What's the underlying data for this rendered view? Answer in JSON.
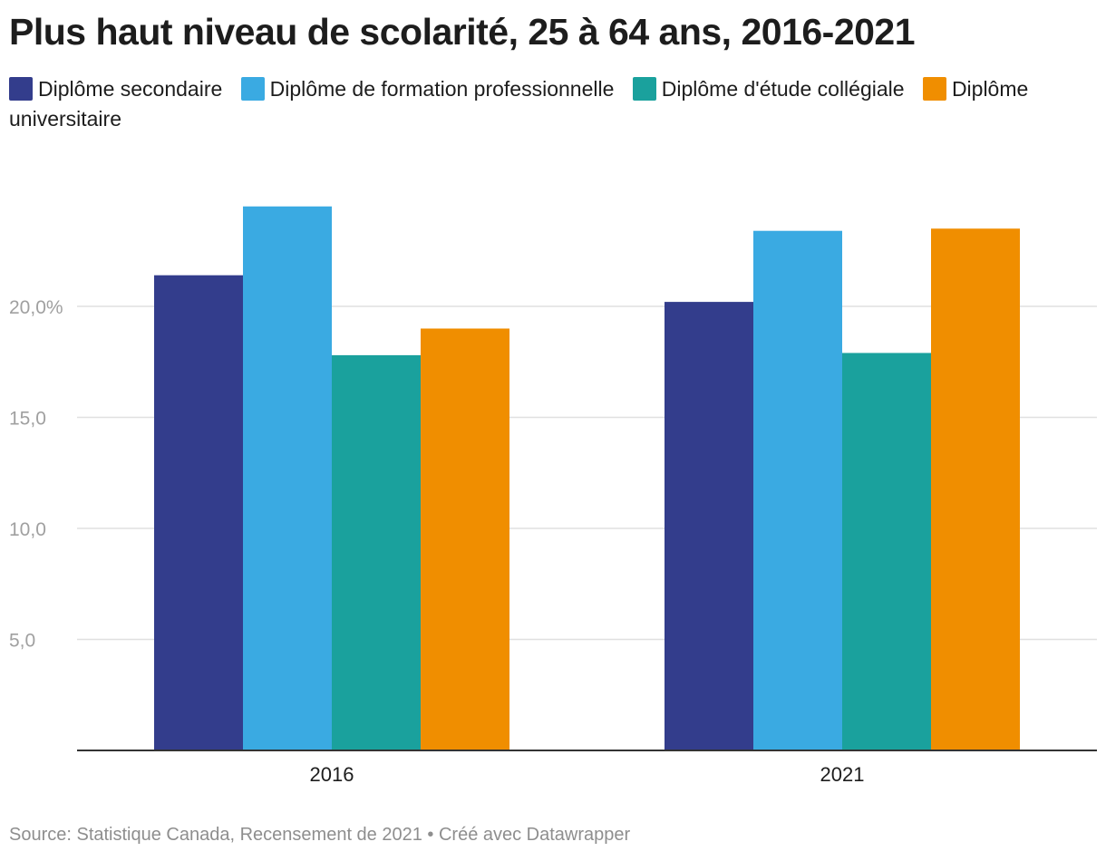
{
  "chart_data": {
    "type": "bar",
    "title": "Plus haut niveau de scolarité, 25 à 64 ans, 2016-2021",
    "categories": [
      "2016",
      "2021"
    ],
    "series": [
      {
        "name": "Diplôme secondaire",
        "color": "#333d8c",
        "values": [
          21.4,
          20.2
        ]
      },
      {
        "name": "Diplôme de formation professionnelle",
        "color": "#3aaae2",
        "values": [
          24.5,
          23.4
        ]
      },
      {
        "name": "Diplôme d'étude collégiale",
        "color": "#1aa19d",
        "values": [
          17.8,
          17.9
        ]
      },
      {
        "name": "Diplôme universitaire",
        "color": "#f08e00",
        "values": [
          19.0,
          23.5
        ]
      }
    ],
    "yticks": [
      5,
      10,
      15,
      20
    ],
    "ytick_labels": [
      "5,0",
      "10,0",
      "15,0",
      "20,0%"
    ],
    "ylim": [
      0,
      27
    ],
    "xlabel": "",
    "ylabel": "",
    "grid": true,
    "legend_position": "top"
  },
  "source": "Source: Statistique Canada, Recensement de 2021 • Créé avec Datawrapper"
}
